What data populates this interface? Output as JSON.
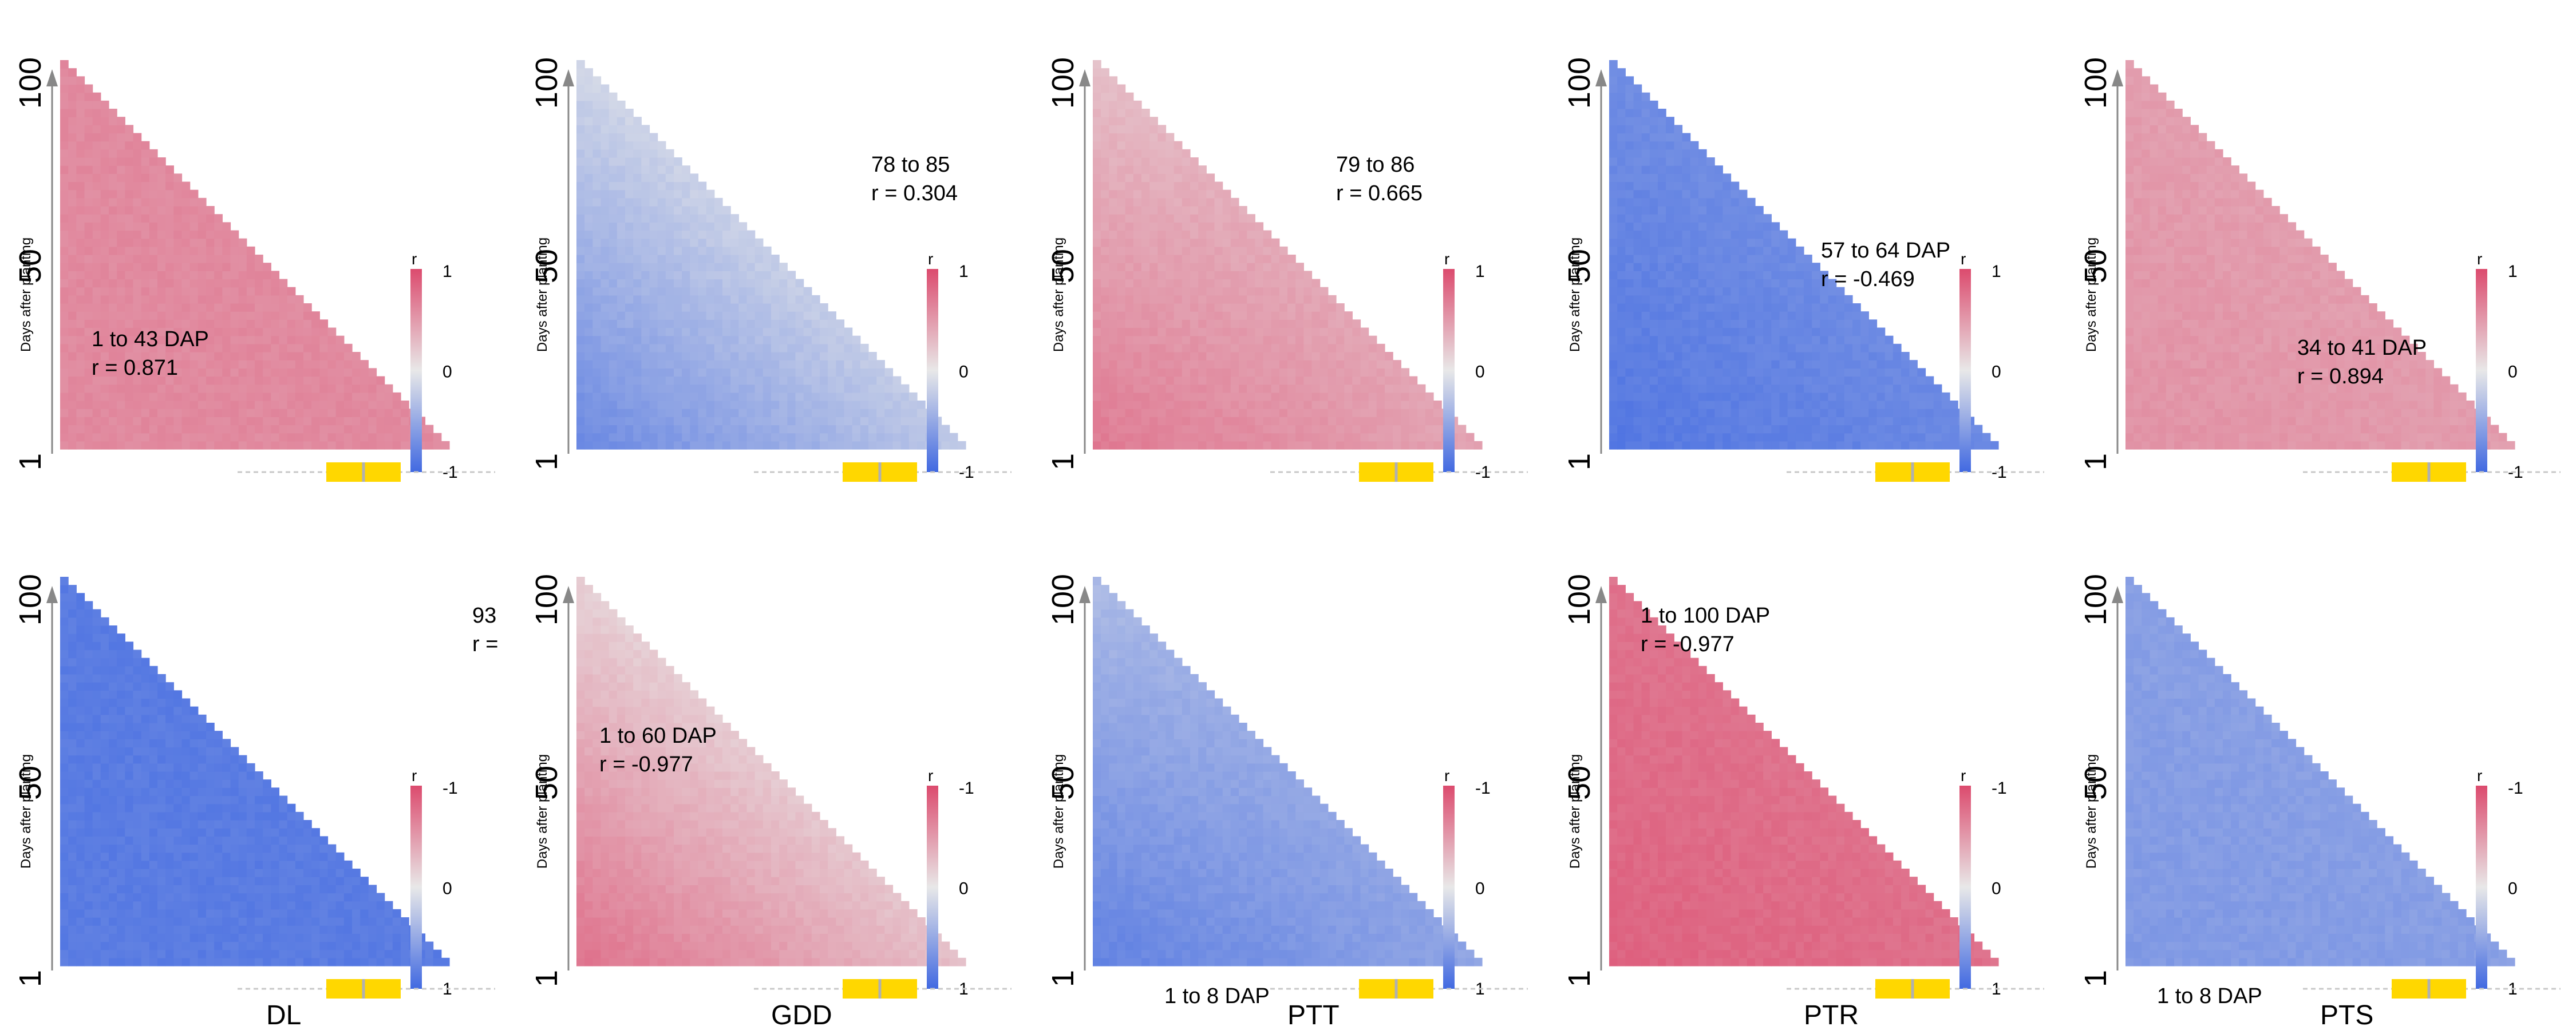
{
  "figure": {
    "colors": {
      "negative": "#4169e1",
      "neutral": "#e8e8e8",
      "positive": "#dc4b6e",
      "bar": "#ffd700",
      "bar_mid": "#b0b0b0",
      "axis": "#888888"
    }
  },
  "chart_data": [
    {
      "type": "heatmap",
      "variable": "",
      "row": 1,
      "col": 1,
      "ylabel": "Days after planting",
      "y_ticks": [
        "1",
        "50",
        "100"
      ],
      "legend_title": "r",
      "legend_ticks": [
        "1",
        "0",
        "-1"
      ],
      "annotation": [
        "1 to 43 DAP",
        "r = 0.871"
      ],
      "pattern": "uniform",
      "field": {
        "base": 0.6
      }
    },
    {
      "type": "heatmap",
      "variable": "",
      "row": 1,
      "col": 2,
      "ylabel": "Days after planting",
      "y_ticks": [
        "1",
        "50",
        "100"
      ],
      "legend_title": "r",
      "legend_ticks": [
        "1",
        "0",
        "-1"
      ],
      "annotation": [
        "78 to 85",
        "r = 0.304"
      ],
      "pattern": "ramp",
      "field": {
        "base": -0.75,
        "gain": 1.1
      }
    },
    {
      "type": "heatmap",
      "variable": "",
      "row": 1,
      "col": 3,
      "ylabel": "Days after planting",
      "y_ticks": [
        "1",
        "50",
        "100"
      ],
      "legend_title": "r",
      "legend_ticks": [
        "1",
        "0",
        "-1"
      ],
      "annotation": [
        "79 to 86",
        "r = 0.665"
      ],
      "pattern": "ptt",
      "field": {
        "base": 0.25,
        "gain": 1.0
      }
    },
    {
      "type": "heatmap",
      "variable": "",
      "row": 1,
      "col": 4,
      "ylabel": "Days after planting",
      "y_ticks": [
        "1",
        "50",
        "100"
      ],
      "legend_title": "r",
      "legend_ticks": [
        "1",
        "0",
        "-1"
      ],
      "annotation": [
        "57 to 64 DAP",
        "r = -0.469"
      ],
      "pattern": "ramp",
      "field": {
        "base": -0.88,
        "gain": 0.3
      }
    },
    {
      "type": "heatmap",
      "variable": "",
      "row": 1,
      "col": 5,
      "ylabel": "Days after planting",
      "y_ticks": [
        "1",
        "50",
        "100"
      ],
      "legend_title": "r",
      "legend_ticks": [
        "1",
        "0",
        "-1"
      ],
      "annotation": [
        "34 to 41 DAP",
        "r = 0.894"
      ],
      "pattern": "ramp",
      "field": {
        "base": 0.55,
        "gain": -0.15
      }
    },
    {
      "type": "heatmap",
      "variable": "DL",
      "row": 2,
      "col": 1,
      "ylabel": "Days after planting",
      "y_ticks": [
        "1",
        "50",
        "100"
      ],
      "legend_title": "r",
      "legend_ticks": [
        "-1",
        "0",
        "1"
      ],
      "annotation": [
        "93",
        "r ="
      ],
      "pattern": "uniform",
      "field": {
        "base": -0.85
      }
    },
    {
      "type": "heatmap",
      "variable": "GDD",
      "row": 2,
      "col": 2,
      "ylabel": "Days after planting",
      "y_ticks": [
        "1",
        "50",
        "100"
      ],
      "legend_title": "r",
      "legend_ticks": [
        "-1",
        "0",
        "1"
      ],
      "annotation": [
        "1 to 60 DAP",
        "r = -0.977"
      ],
      "pattern": "ramp",
      "field": {
        "base": 0.75,
        "gain": -1.1
      }
    },
    {
      "type": "heatmap",
      "variable": "PTT",
      "row": 2,
      "col": 3,
      "ylabel": "Days after planting",
      "y_ticks": [
        "1",
        "50",
        "100"
      ],
      "legend_title": "r",
      "legend_ticks": [
        "-1",
        "0",
        "1"
      ],
      "annotation": [
        "1 to 8 DAP",
        ""
      ],
      "pattern": "ptt",
      "field": {
        "base": -0.35,
        "gain": -1.0
      }
    },
    {
      "type": "heatmap",
      "variable": "PTR",
      "row": 2,
      "col": 4,
      "ylabel": "Days after planting",
      "y_ticks": [
        "1",
        "50",
        "100"
      ],
      "legend_title": "r",
      "legend_ticks": [
        "-1",
        "0",
        "1"
      ],
      "annotation": [
        "1 to 100 DAP",
        "r = -0.977"
      ],
      "pattern": "ramp",
      "field": {
        "base": 0.85,
        "gain": -0.2
      }
    },
    {
      "type": "heatmap",
      "variable": "PTS",
      "row": 2,
      "col": 5,
      "ylabel": "Days after planting",
      "y_ticks": [
        "1",
        "50",
        "100"
      ],
      "legend_title": "r",
      "legend_ticks": [
        "-1",
        "0",
        "1"
      ],
      "annotation": [
        "1 to 8 DAP",
        ""
      ],
      "pattern": "ramp",
      "field": {
        "base": -0.62,
        "gain": 0.1
      }
    }
  ]
}
